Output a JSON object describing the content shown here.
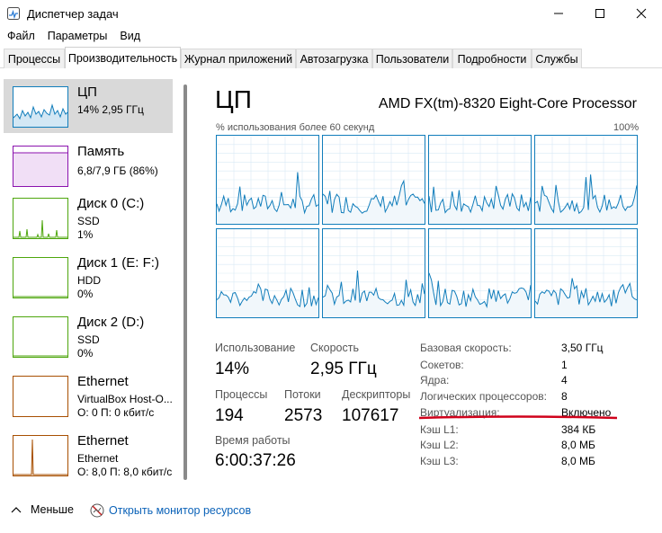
{
  "window": {
    "title": "Диспетчер задач"
  },
  "menu": [
    "Файл",
    "Параметры",
    "Вид"
  ],
  "tabs": [
    "Процессы",
    "Производительность",
    "Журнал приложений",
    "Автозагрузка",
    "Пользователи",
    "Подробности",
    "Службы"
  ],
  "sidebar": {
    "items": [
      {
        "name": "ЦП",
        "l2": "14% 2,95 ГГц",
        "l3": ""
      },
      {
        "name": "Память",
        "l2": "6,8/7,9 ГБ (86%)",
        "l3": ""
      },
      {
        "name": "Диск 0 (C:)",
        "l2": "SSD",
        "l3": "1%"
      },
      {
        "name": "Диск 1 (E: F:)",
        "l2": "HDD",
        "l3": "0%"
      },
      {
        "name": "Диск 2 (D:)",
        "l2": "SSD",
        "l3": "0%"
      },
      {
        "name": "Ethernet",
        "l2": "VirtualBox Host-O...",
        "l3": "О: 0 П: 0 кбит/с"
      },
      {
        "name": "Ethernet",
        "l2": "Ethernet",
        "l3": "О: 8,0 П: 8,0 кбит/с"
      }
    ]
  },
  "cpu": {
    "title": "ЦП",
    "model": "AMD FX(tm)-8320 Eight-Core Processor",
    "graph_caption": "% использования более 60 секунд",
    "graph_max": "100%",
    "stats": {
      "usage_label": "Использование",
      "usage": "14%",
      "speed_label": "Скорость",
      "speed": "2,95 ГГц",
      "processes_label": "Процессы",
      "processes": "194",
      "threads_label": "Потоки",
      "threads": "2573",
      "handles_label": "Дескрипторы",
      "handles": "107617",
      "uptime_label": "Время работы",
      "uptime": "6:00:37:26"
    },
    "props": [
      {
        "label": "Базовая скорость:",
        "value": "3,50 ГГц"
      },
      {
        "label": "Сокетов:",
        "value": "1"
      },
      {
        "label": "Ядра:",
        "value": "4"
      },
      {
        "label": "Логических процессоров:",
        "value": "8"
      },
      {
        "label": "Виртуализация:",
        "value": "Включено"
      },
      {
        "label": "Кэш L1:",
        "value": "384 КБ"
      },
      {
        "label": "Кэш L2:",
        "value": "8,0 МБ"
      },
      {
        "label": "Кэш L3:",
        "value": "8,0 МБ"
      }
    ]
  },
  "footer": {
    "fewer": "Меньше",
    "monitor": "Открыть монитор ресурсов"
  },
  "colors": {
    "cpu": "#117dbb",
    "memory": "#8b12ae",
    "disk": "#4da60c",
    "ethernet": "#a74f01",
    "annotation": "#d0021b"
  }
}
